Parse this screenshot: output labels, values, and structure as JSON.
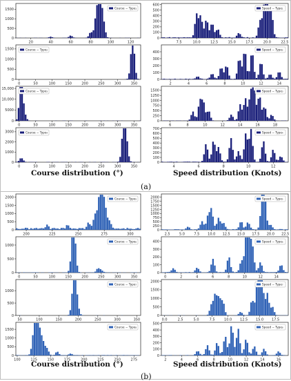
{
  "figure": {
    "panel_a_label": "(a)",
    "panel_b_label": "(b)",
    "column_labels": {
      "course": "Course distribution (°)",
      "speed": "Speed distribution (Knots)"
    },
    "colors": {
      "panel_a_bars": "#1a1f7a",
      "panel_b_bars": "#2f62b6"
    }
  },
  "chart_data": [
    {
      "type": "bar",
      "group": "a",
      "row": 1,
      "col": "course",
      "legend": "Course − Type₁",
      "xlim": [
        5,
        130
      ],
      "ylim": [
        0,
        1800
      ],
      "xticks": [
        20,
        40,
        60,
        80,
        100,
        120
      ],
      "yticks": [
        0,
        500,
        1000,
        1500
      ],
      "peaks": [
        [
          88,
          1700
        ],
        [
          90,
          1550
        ],
        [
          85,
          900
        ],
        [
          93,
          700
        ],
        [
          80,
          300
        ],
        [
          60,
          120
        ],
        [
          40,
          60
        ]
      ],
      "base": 8
    },
    {
      "type": "bar",
      "group": "a",
      "row": 1,
      "col": "speed",
      "legend": "Speed − Type₁",
      "xlim": [
        5,
        23
      ],
      "ylim": [
        0,
        620
      ],
      "xticks": [
        7.5,
        10.0,
        12.5,
        15.0,
        17.5,
        20.0,
        22.5
      ],
      "yticks": [
        0,
        100,
        200,
        300,
        400,
        500,
        600
      ],
      "peaks": [
        [
          10,
          420
        ],
        [
          10.6,
          380
        ],
        [
          11.4,
          330
        ],
        [
          12.2,
          260
        ],
        [
          20,
          600
        ],
        [
          19.6,
          520
        ],
        [
          20.6,
          480
        ],
        [
          19,
          300
        ],
        [
          13,
          150
        ],
        [
          16,
          80
        ]
      ],
      "base": 12
    },
    {
      "type": "bar",
      "group": "a",
      "row": 2,
      "col": "course",
      "legend": "Course − Type₂",
      "xlim": [
        -10,
        370
      ],
      "ylim": [
        0,
        1700
      ],
      "xticks": [
        0,
        50,
        100,
        150,
        200,
        250,
        300,
        350
      ],
      "yticks": [
        0,
        500,
        1000,
        1500
      ],
      "peaks": [
        [
          345,
          1600
        ],
        [
          350,
          500
        ],
        [
          340,
          200
        ]
      ],
      "base": 5
    },
    {
      "type": "bar",
      "group": "a",
      "row": 2,
      "col": "speed",
      "legend": "Speed − Type₂",
      "xlim": [
        1,
        15
      ],
      "ylim": [
        0,
        500
      ],
      "xticks": [
        2,
        4,
        6,
        8,
        10,
        12,
        14
      ],
      "yticks": [
        0,
        100,
        200,
        300,
        400
      ],
      "peaks": [
        [
          10.2,
          420
        ],
        [
          11,
          400
        ],
        [
          9.6,
          300
        ],
        [
          12,
          250
        ],
        [
          8.2,
          200
        ],
        [
          7.6,
          170
        ],
        [
          6.6,
          80
        ],
        [
          14,
          110
        ],
        [
          13,
          70
        ],
        [
          5,
          40
        ]
      ],
      "base": 8
    },
    {
      "type": "bar",
      "group": "a",
      "row": 3,
      "col": "course",
      "legend": "Course − Type₃",
      "xlim": [
        -10,
        370
      ],
      "ylim": [
        0,
        16000
      ],
      "xticks": [
        0,
        50,
        100,
        150,
        200,
        250,
        300,
        350
      ],
      "yticks": [
        0,
        5000,
        10000,
        15000
      ],
      "peaks": [
        [
          5,
          15000
        ],
        [
          10,
          5000
        ],
        [
          15,
          2000
        ],
        [
          20,
          800
        ]
      ],
      "base": 60
    },
    {
      "type": "bar",
      "group": "a",
      "row": 3,
      "col": "speed",
      "legend": "Speed − Type₃",
      "xlim": [
        5,
        19.5
      ],
      "ylim": [
        0,
        1700
      ],
      "xticks": [
        6,
        8,
        10,
        12,
        14,
        16,
        18
      ],
      "yticks": [
        0,
        250,
        500,
        750,
        1000,
        1250,
        1500
      ],
      "peaks": [
        [
          9.4,
          950
        ],
        [
          9.8,
          900
        ],
        [
          15.6,
          1500
        ],
        [
          15.2,
          1350
        ],
        [
          16.2,
          1250
        ],
        [
          14.6,
          1100
        ],
        [
          14,
          800
        ],
        [
          16.8,
          700
        ],
        [
          10.4,
          500
        ],
        [
          8.6,
          450
        ],
        [
          13,
          300
        ],
        [
          17.6,
          300
        ]
      ],
      "base": 10
    },
    {
      "type": "bar",
      "group": "a",
      "row": 4,
      "col": "course",
      "legend": "Course − Type₄",
      "xlim": [
        -10,
        370
      ],
      "ylim": [
        0,
        3400
      ],
      "xticks": [
        0,
        50,
        100,
        150,
        200,
        250,
        300,
        350
      ],
      "yticks": [
        0,
        1000,
        2000,
        3000
      ],
      "peaks": [
        [
          320,
          3100
        ],
        [
          325,
          1500
        ],
        [
          315,
          1200
        ],
        [
          330,
          500
        ],
        [
          5,
          300
        ],
        [
          10,
          150
        ]
      ],
      "base": 20
    },
    {
      "type": "bar",
      "group": "a",
      "row": 4,
      "col": "speed",
      "legend": "Speed − Type₄",
      "xlim": [
        3,
        13.2
      ],
      "ylim": [
        0,
        720
      ],
      "xticks": [
        4,
        6,
        8,
        10,
        12
      ],
      "yticks": [
        0,
        100,
        200,
        300,
        400,
        500,
        600,
        700
      ],
      "peaks": [
        [
          10.2,
          680
        ],
        [
          9.8,
          600
        ],
        [
          8.6,
          500
        ],
        [
          7.2,
          450
        ],
        [
          11.2,
          440
        ],
        [
          6.6,
          380
        ],
        [
          7.6,
          300
        ],
        [
          12,
          260
        ],
        [
          9.2,
          220
        ],
        [
          12.6,
          120
        ]
      ],
      "base": 10
    },
    {
      "type": "bar",
      "group": "b",
      "row": 1,
      "col": "course",
      "legend": "Course − Type₅",
      "xlim": [
        190,
        310
      ],
      "ylim": [
        0,
        2200
      ],
      "xticks": [
        200,
        225,
        250,
        275,
        300
      ],
      "yticks": [
        0,
        500,
        1000,
        1500,
        2000
      ],
      "peaks": [
        [
          273,
          2000
        ],
        [
          270,
          1700
        ],
        [
          276,
          1200
        ],
        [
          266,
          800
        ],
        [
          280,
          500
        ],
        [
          260,
          400
        ],
        [
          240,
          250
        ],
        [
          220,
          200
        ]
      ],
      "base": 100
    },
    {
      "type": "bar",
      "group": "b",
      "row": 1,
      "col": "speed",
      "legend": "Speed − Type₅",
      "xlim": [
        1.5,
        23
      ],
      "ylim": [
        0,
        2200
      ],
      "xticks": [
        2.5,
        5.0,
        7.5,
        10.0,
        12.5,
        15.0,
        17.5,
        20.0,
        22.5
      ],
      "yticks": [
        0,
        250,
        500,
        750,
        1000,
        1250,
        1500,
        1750,
        2000
      ],
      "peaks": [
        [
          19,
          2000
        ],
        [
          18.6,
          1800
        ],
        [
          10,
          1200
        ],
        [
          9.4,
          800
        ],
        [
          11.2,
          700
        ],
        [
          8.4,
          500
        ],
        [
          15,
          500
        ],
        [
          16.2,
          450
        ],
        [
          12,
          400
        ],
        [
          20,
          300
        ],
        [
          6,
          150
        ]
      ],
      "base": 40
    },
    {
      "type": "bar",
      "group": "b",
      "row": 2,
      "col": "course",
      "legend": "Course − Type₆",
      "xlim": [
        -10,
        370
      ],
      "ylim": [
        0,
        1300
      ],
      "xticks": [
        0,
        50,
        100,
        150,
        200,
        250,
        300,
        350
      ],
      "yticks": [
        0,
        500,
        1000
      ],
      "peaks": [
        [
          165,
          1250
        ],
        [
          170,
          600
        ],
        [
          160,
          300
        ],
        [
          240,
          150
        ],
        [
          250,
          80
        ]
      ],
      "base": 10
    },
    {
      "type": "bar",
      "group": "b",
      "row": 2,
      "col": "speed",
      "legend": "Speed − Type₆",
      "xlim": [
        -0.5,
        15.5
      ],
      "ylim": [
        0,
        460
      ],
      "xticks": [
        0,
        2,
        4,
        6,
        8,
        10,
        12,
        14
      ],
      "yticks": [
        0,
        100,
        200,
        300,
        400
      ],
      "peaks": [
        [
          10.2,
          440
        ],
        [
          10.6,
          380
        ],
        [
          11,
          300
        ],
        [
          8,
          200
        ],
        [
          6,
          170
        ],
        [
          9.6,
          150
        ],
        [
          12,
          130
        ],
        [
          14.6,
          100
        ],
        [
          4,
          60
        ],
        [
          1,
          50
        ]
      ],
      "base": 6
    },
    {
      "type": "bar",
      "group": "b",
      "row": 3,
      "col": "course",
      "legend": "Course − Type₇",
      "xlim": [
        40,
        360
      ],
      "ylim": [
        0,
        1450
      ],
      "xticks": [
        50,
        100,
        150,
        200,
        250,
        300,
        350
      ],
      "yticks": [
        0,
        500,
        1000
      ],
      "peaks": [
        [
          190,
          1350
        ],
        [
          195,
          600
        ],
        [
          185,
          400
        ],
        [
          200,
          150
        ]
      ],
      "base": 5
    },
    {
      "type": "bar",
      "group": "b",
      "row": 3,
      "col": "speed",
      "legend": "Speed − Type₇",
      "xlim": [
        -0.5,
        19.5
      ],
      "ylim": [
        0,
        2100
      ],
      "xticks": [
        0.0,
        2.5,
        5.0,
        7.5,
        10.0,
        12.5,
        15.0,
        17.5
      ],
      "yticks": [
        0,
        500,
        1000,
        1500,
        2000
      ],
      "peaks": [
        [
          15,
          2000
        ],
        [
          15.4,
          1700
        ],
        [
          14.6,
          1500
        ],
        [
          16.2,
          1300
        ],
        [
          8,
          1200
        ],
        [
          8.6,
          1000
        ],
        [
          13.8,
          900
        ],
        [
          9.2,
          800
        ],
        [
          7.4,
          600
        ],
        [
          17,
          500
        ],
        [
          12,
          200
        ]
      ],
      "base": 10
    },
    {
      "type": "bar",
      "group": "b",
      "row": 4,
      "col": "course",
      "legend": "Course − Type₈",
      "xlim": [
        98,
        285
      ],
      "ylim": [
        0,
        1900
      ],
      "xticks": [
        100,
        125,
        150,
        175,
        200,
        225,
        250,
        275
      ],
      "yticks": [
        0,
        500,
        1000,
        1500
      ],
      "peaks": [
        [
          128,
          1700
        ],
        [
          132,
          1300
        ],
        [
          124,
          900
        ],
        [
          136,
          800
        ],
        [
          140,
          500
        ],
        [
          145,
          350
        ],
        [
          160,
          200
        ],
        [
          180,
          100
        ]
      ],
      "base": 20
    },
    {
      "type": "bar",
      "group": "b",
      "row": 4,
      "col": "speed",
      "legend": "Speed − Type₈",
      "xlim": [
        1.5,
        17.2
      ],
      "ylim": [
        0,
        520
      ],
      "xticks": [
        2,
        4,
        6,
        8,
        10,
        12,
        14,
        16
      ],
      "yticks": [
        0,
        100,
        200,
        300,
        400,
        500
      ],
      "peaks": [
        [
          10.2,
          480
        ],
        [
          11,
          420
        ],
        [
          9.4,
          300
        ],
        [
          12,
          260
        ],
        [
          8.4,
          200
        ],
        [
          7.2,
          160
        ],
        [
          13,
          140
        ],
        [
          14.2,
          100
        ],
        [
          16,
          60
        ],
        [
          6,
          70
        ]
      ],
      "base": 5
    }
  ]
}
